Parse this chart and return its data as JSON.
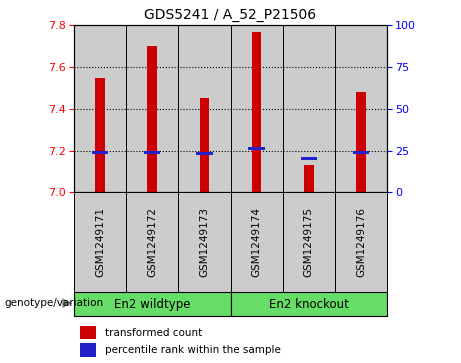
{
  "title": "GDS5241 / A_52_P21506",
  "samples": [
    "GSM1249171",
    "GSM1249172",
    "GSM1249173",
    "GSM1249174",
    "GSM1249175",
    "GSM1249176"
  ],
  "red_values": [
    7.55,
    7.7,
    7.45,
    7.77,
    7.13,
    7.48
  ],
  "blue_values": [
    7.185,
    7.185,
    7.18,
    7.205,
    7.155,
    7.185
  ],
  "y_min": 7.0,
  "y_max": 7.8,
  "y_ticks": [
    7.0,
    7.2,
    7.4,
    7.6,
    7.8
  ],
  "right_y_ticks": [
    0,
    25,
    50,
    75,
    100
  ],
  "group1_label": "En2 wildtype",
  "group2_label": "En2 knockout",
  "group1_color": "#66dd66",
  "group2_color": "#66dd66",
  "bar_bg_color": "#cccccc",
  "genotype_label": "genotype/variation",
  "legend_red": "transformed count",
  "legend_blue": "percentile rank within the sample",
  "red_color": "#cc0000",
  "blue_color": "#2222cc",
  "title_fontsize": 10,
  "tick_fontsize": 8
}
